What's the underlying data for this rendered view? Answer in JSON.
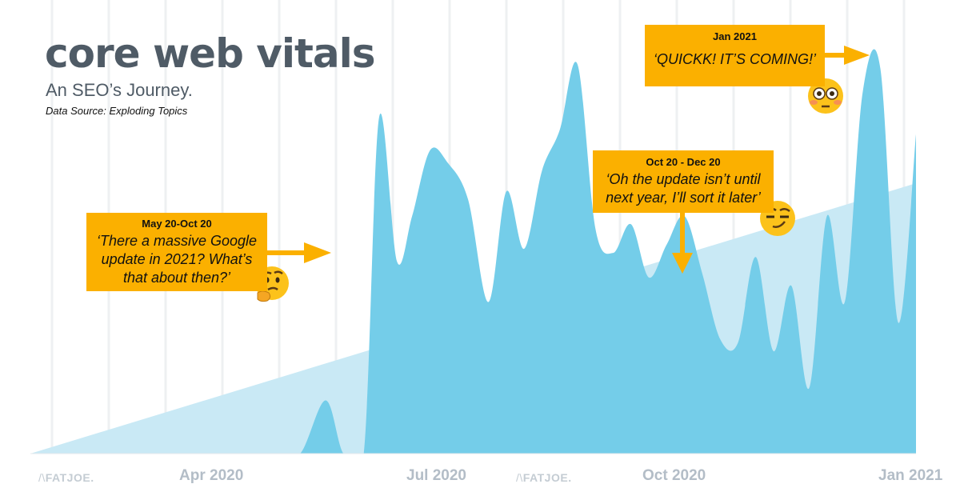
{
  "header": {
    "title": "core web vitals",
    "subtitle": "An SEO’s Journey.",
    "source": "Data Source: Exploding Topics"
  },
  "watermarks": [
    "FATJOE.",
    "FATJOE."
  ],
  "colors": {
    "area": "#74cde9",
    "trend": "#c9e9f5",
    "gridline": "#eef0f2",
    "annotation_bg": "#fbb000",
    "title_text": "#4f5b66",
    "tick_text": "#b3bdc7"
  },
  "annotations": [
    {
      "period": "May 20-Oct 20",
      "quote": "‘There a massive Google update in 2021? What’s that about then?’",
      "emoji": "thinking-face"
    },
    {
      "period": "Oct 20 - Dec 20",
      "quote": "‘Oh the update isn’t until next year, I’ll sort it later’",
      "emoji": "smirking-face"
    },
    {
      "period": "Jan 2021",
      "quote": "‘QUICKK! IT’S COMING!’",
      "emoji": "flushed-face"
    }
  ],
  "chart_data": {
    "type": "area",
    "title": "core web vitals",
    "subtitle": "An SEO’s Journey.",
    "xlabel": "",
    "ylabel": "",
    "x_ticks": [
      "Apr 2020",
      "Jul 2020",
      "Oct 2020",
      "Jan 2021"
    ],
    "x": [
      "2020-01-20",
      "2020-02-15",
      "2020-03-10",
      "2020-03-25",
      "2020-04-10",
      "2020-04-25",
      "2020-05-05",
      "2020-05-15",
      "2020-05-22",
      "2020-05-30",
      "2020-06-05",
      "2020-06-12",
      "2020-06-18",
      "2020-06-25",
      "2020-07-02",
      "2020-07-10",
      "2020-07-18",
      "2020-07-25",
      "2020-08-01",
      "2020-08-08",
      "2020-08-15",
      "2020-08-22",
      "2020-08-29",
      "2020-09-05",
      "2020-09-12",
      "2020-09-19",
      "2020-09-26",
      "2020-10-03",
      "2020-10-10",
      "2020-10-17",
      "2020-10-24",
      "2020-10-31",
      "2020-11-07",
      "2020-11-14",
      "2020-11-21",
      "2020-11-28",
      "2020-12-05",
      "2020-12-12",
      "2020-12-19",
      "2020-12-26",
      "2021-01-02"
    ],
    "values": [
      0,
      0,
      0,
      0,
      0,
      0,
      0,
      13,
      0,
      0,
      82,
      47,
      58,
      74,
      71,
      62,
      37,
      64,
      50,
      69,
      79,
      95,
      55,
      49,
      56,
      43,
      51,
      58,
      44,
      28,
      27,
      48,
      25,
      41,
      16,
      58,
      37,
      88,
      94,
      32,
      78
    ],
    "ylim": [
      0,
      100
    ],
    "trend": {
      "start": 0,
      "end": 66
    },
    "grid": true,
    "legend": "none"
  }
}
